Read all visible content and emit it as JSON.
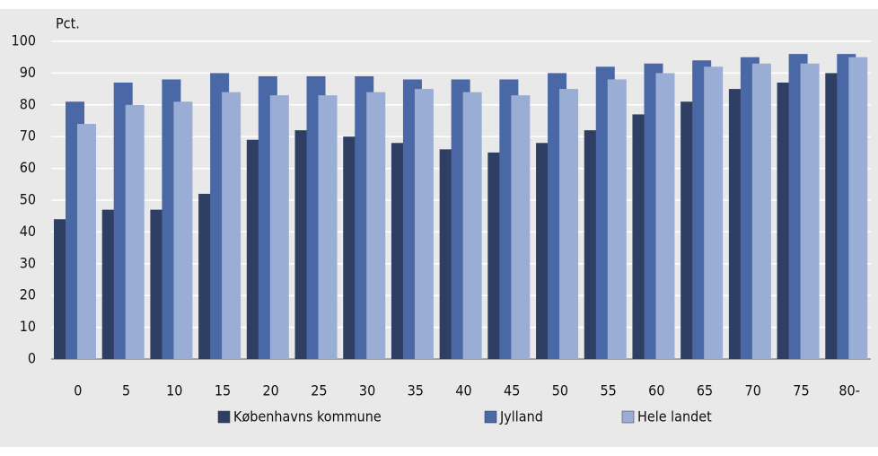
{
  "chart_data": {
    "type": "bar",
    "y_label": "Pct.",
    "categories": [
      "0",
      "5",
      "10",
      "15",
      "20",
      "25",
      "30",
      "35",
      "40",
      "45",
      "50",
      "55",
      "60",
      "65",
      "70",
      "75",
      "80-"
    ],
    "series": [
      {
        "name": "Københavns kommune",
        "color": "#2f3f64",
        "values": [
          44,
          47,
          47,
          52,
          69,
          72,
          70,
          68,
          66,
          65,
          68,
          72,
          77,
          81,
          85,
          87,
          90
        ]
      },
      {
        "name": "Jylland",
        "color": "#4a68a6",
        "values": [
          81,
          87,
          88,
          90,
          89,
          89,
          89,
          88,
          88,
          88,
          90,
          92,
          93,
          94,
          95,
          96,
          96
        ]
      },
      {
        "name": "Hele landet",
        "color": "#9aadd5",
        "values": [
          74,
          80,
          81,
          84,
          83,
          83,
          84,
          85,
          84,
          83,
          85,
          88,
          90,
          92,
          93,
          93,
          95
        ]
      }
    ],
    "ylim": [
      0,
      100
    ],
    "yticks": [
      0,
      10,
      20,
      30,
      40,
      50,
      60,
      70,
      80,
      90,
      100
    ],
    "grid": true
  }
}
